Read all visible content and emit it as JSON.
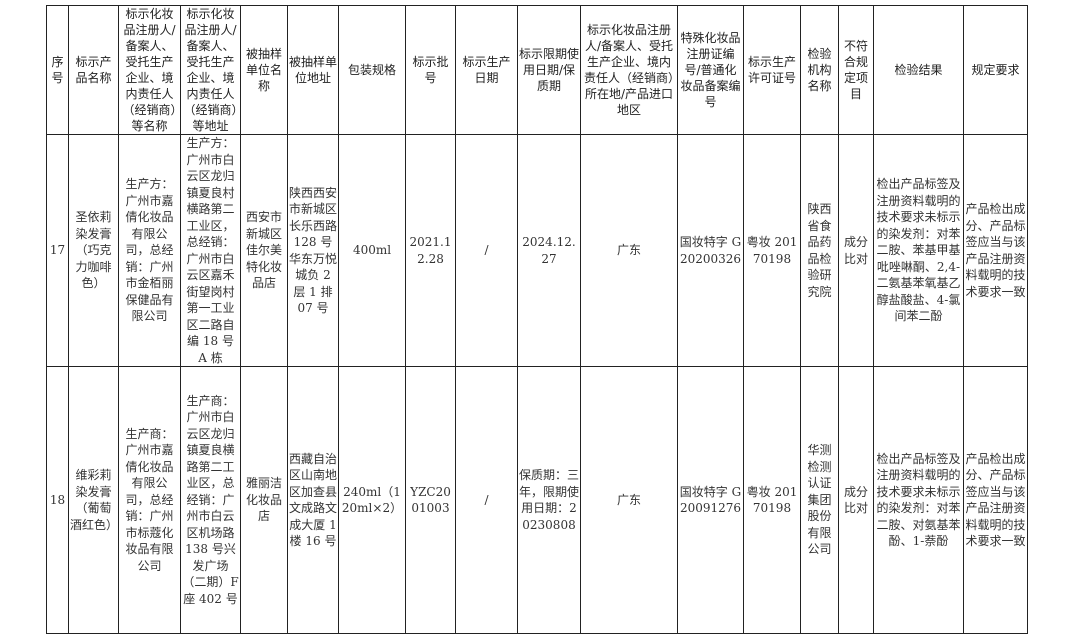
{
  "headers": [
    "序号",
    "标示产品名称",
    "标示化妆品注册人/备案人、受托生产企业、境内责任人（经销商）等名称",
    "标示化妆品注册人/备案人、受托生产企业、境内责任人（经销商）等地址",
    "被抽样单位名称",
    "被抽样单位地址",
    "包装规格",
    "标示批号",
    "标示生产日期",
    "标示限期使用日期/保质期",
    "标示化妆品注册人/备案人、受托生产企业、境内责任人（经销商）所在地/产品进口地区",
    "特殊化妆品注册证编号/普通化妆品备案编号",
    "标示生产许可证号",
    "检验机构名称",
    "不符合规定项目",
    "检验结果",
    "规定要求"
  ],
  "rows": [
    [
      "17",
      "圣依莉染发膏（巧克力咖啡色）",
      "生产方：广州市嘉倩化妆品有限公司，总经销：广州市金栢丽保健品有限公司",
      "生产方：广州市白云区龙归镇夏良村横路第二工业区，总经销：广州市白云区嘉禾街望岗村第一工业区二路自编 18 号 A 栋",
      "西安市新城区佳尔美特化妆品店",
      "陕西西安市新城区长乐西路 128 号华东万悦城负 2 层 1 排 07 号",
      "400ml",
      "2021.12.28",
      "/",
      "2024.12.27",
      "广东",
      "国妆特字 G20200326",
      "粤妆 20170198",
      "陕西省食品药品检验研究院",
      "成分比对",
      "检出产品标签及注册资料载明的技术要求未标示的染发剂：对苯二胺、苯基甲基吡唑啉酮、2,4-二氨基苯氧基乙醇盐酸盐、4-氯间苯二酚",
      "产品检出成分、产品标签应当与该产品注册资料载明的技术要求一致"
    ],
    [
      "18",
      "维彩莉染发膏（葡萄酒红色）",
      "生产商：广州市嘉倩化妆品有限公司，总经销：广州市标蔻化妆品有限公司",
      "生产商：广州市白云区龙归镇夏良横路第二工业区，总经销：广州市白云区机场路 138 号兴发广场（二期）F 座 402 号",
      "雅丽洁化妆品店",
      "西藏自治区山南地区加查县文成路文成大厦 1 楼 16 号",
      "240ml（120ml×2）",
      "YZC2001003",
      "/",
      "保质期：三年，限期使用日期：20230808",
      "广东",
      "国妆特字 G20091276",
      "粤妆 20170198",
      "华测检测认证集团股份有限公司",
      "成分比对",
      "检出产品标签及注册资料载明的技术要求未标示的染发剂：对苯二胺、对氨基苯酚、1-萘酚",
      "产品检出成分、产品标签应当与该产品注册资料载明的技术要求一致"
    ]
  ]
}
